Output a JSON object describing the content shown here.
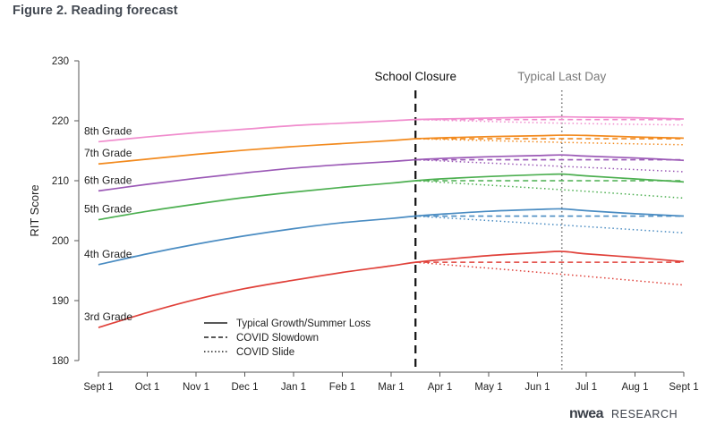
{
  "figure_title": "Figure 2. Reading forecast",
  "brand": {
    "logo": "nwea",
    "research": "RESEARCH"
  },
  "chart_data": {
    "type": "line",
    "ylabel": "RIT Score",
    "xlabel": "",
    "ylim": [
      180,
      230
    ],
    "yticks": [
      180,
      190,
      200,
      210,
      220,
      230
    ],
    "xlim": [
      0,
      12
    ],
    "x_tick_labels": [
      "Sept 1",
      "Oct 1",
      "Nov 1",
      "Dec 1",
      "Jan 1",
      "Feb 1",
      "Mar 1",
      "Apr 1",
      "May 1",
      "Jun 1",
      "Jul 1",
      "Aug 1",
      "Sept 1"
    ],
    "annotations": [
      {
        "label": "School Closure",
        "x": 6.5,
        "style": "dashed",
        "color": "#111111"
      },
      {
        "label": "Typical Last Day",
        "x": 9.5,
        "style": "dotted",
        "color": "#777777"
      }
    ],
    "legend": {
      "placement": "bottom-center",
      "entries": [
        {
          "label": "Typical Growth/Summer Loss",
          "style": "solid"
        },
        {
          "label": "COVID Slowdown",
          "style": "dashed"
        },
        {
          "label": "COVID Slide",
          "style": "dotted"
        }
      ]
    },
    "series": [
      {
        "name": "8th Grade",
        "color": "#f08ccd",
        "typical": {
          "x": [
            0,
            1,
            2,
            3,
            4,
            5,
            6,
            6.5,
            7,
            8,
            9,
            9.5,
            10,
            11,
            12
          ],
          "y": [
            216.5,
            217.3,
            218.0,
            218.6,
            219.2,
            219.6,
            220.0,
            220.2,
            220.3,
            220.45,
            220.6,
            220.65,
            220.6,
            220.5,
            220.3
          ]
        },
        "slowdown": {
          "x": [
            6.5,
            12
          ],
          "y": [
            220.2,
            220.2
          ]
        },
        "slide": {
          "x": [
            6.5,
            9.5,
            12
          ],
          "y": [
            220.2,
            219.6,
            219.3
          ]
        }
      },
      {
        "name": "7th Grade",
        "color": "#f28a1e",
        "typical": {
          "x": [
            0,
            1,
            2,
            3,
            4,
            5,
            6,
            6.5,
            7,
            8,
            9,
            9.5,
            10,
            11,
            12
          ],
          "y": [
            212.8,
            213.6,
            214.4,
            215.1,
            215.7,
            216.2,
            216.7,
            217.0,
            217.15,
            217.35,
            217.5,
            217.6,
            217.55,
            217.3,
            217.1
          ]
        },
        "slowdown": {
          "x": [
            6.5,
            12
          ],
          "y": [
            217.0,
            217.0
          ]
        },
        "slide": {
          "x": [
            6.5,
            9.5,
            12
          ],
          "y": [
            217.0,
            216.4,
            216.0
          ]
        }
      },
      {
        "name": "6th Grade",
        "color": "#9b59b6",
        "typical": {
          "x": [
            0,
            1,
            2,
            3,
            4,
            5,
            6,
            6.5,
            7,
            8,
            9,
            9.5,
            10,
            11,
            12
          ],
          "y": [
            208.3,
            209.4,
            210.4,
            211.3,
            212.1,
            212.7,
            213.2,
            213.5,
            213.7,
            214.0,
            214.2,
            214.3,
            214.1,
            213.8,
            213.4
          ]
        },
        "slowdown": {
          "x": [
            6.5,
            12
          ],
          "y": [
            213.5,
            213.5
          ]
        },
        "slide": {
          "x": [
            6.5,
            9.5,
            12
          ],
          "y": [
            213.5,
            212.4,
            211.5
          ]
        }
      },
      {
        "name": "5th Grade",
        "color": "#4caf50",
        "typical": {
          "x": [
            0,
            1,
            2,
            3,
            4,
            5,
            6,
            6.5,
            7,
            8,
            9,
            9.5,
            10,
            11,
            12
          ],
          "y": [
            203.5,
            204.9,
            206.1,
            207.2,
            208.1,
            208.9,
            209.6,
            210.0,
            210.3,
            210.7,
            211.0,
            211.1,
            210.8,
            210.3,
            209.8
          ]
        },
        "slowdown": {
          "x": [
            6.5,
            12
          ],
          "y": [
            210.0,
            210.0
          ]
        },
        "slide": {
          "x": [
            6.5,
            9.5,
            12
          ],
          "y": [
            210.0,
            208.5,
            207.1
          ]
        }
      },
      {
        "name": "4th Grade",
        "color": "#4a8cc2",
        "typical": {
          "x": [
            0,
            1,
            2,
            3,
            4,
            5,
            6,
            6.5,
            7,
            8,
            9,
            9.5,
            10,
            11,
            12
          ],
          "y": [
            196.0,
            197.8,
            199.4,
            200.8,
            202.0,
            203.0,
            203.7,
            204.1,
            204.4,
            204.9,
            205.2,
            205.3,
            205.0,
            204.5,
            204.1
          ]
        },
        "slowdown": {
          "x": [
            6.5,
            12
          ],
          "y": [
            204.1,
            204.1
          ]
        },
        "slide": {
          "x": [
            6.5,
            9.5,
            12
          ],
          "y": [
            204.1,
            202.6,
            201.3
          ]
        }
      },
      {
        "name": "3rd Grade",
        "color": "#e0413a",
        "typical": {
          "x": [
            0,
            1,
            2,
            3,
            4,
            5,
            6,
            6.5,
            7,
            8,
            9,
            9.5,
            10,
            11,
            12
          ],
          "y": [
            185.5,
            188.0,
            190.2,
            192.0,
            193.4,
            194.7,
            195.8,
            196.4,
            196.8,
            197.5,
            198.0,
            198.2,
            197.8,
            197.2,
            196.5
          ]
        },
        "slowdown": {
          "x": [
            6.5,
            12
          ],
          "y": [
            196.4,
            196.4
          ]
        },
        "slide": {
          "x": [
            6.5,
            9.5,
            12
          ],
          "y": [
            196.4,
            194.4,
            192.6
          ]
        }
      }
    ]
  }
}
